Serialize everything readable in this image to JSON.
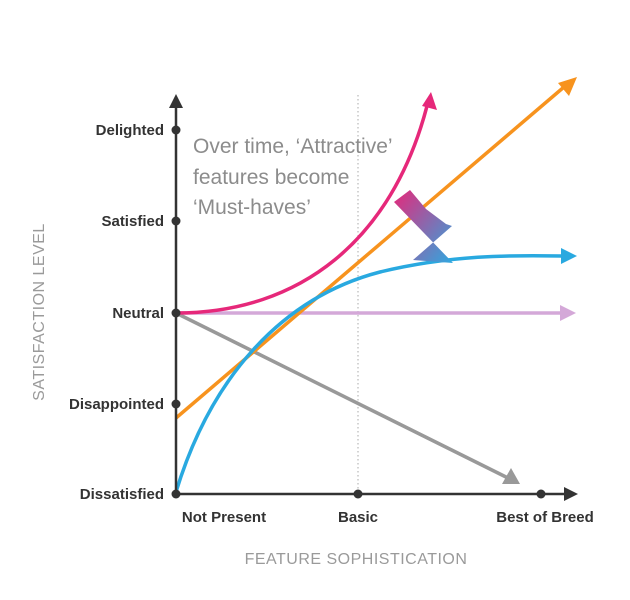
{
  "diagram": {
    "y_axis_title": "SATISFACTION LEVEL",
    "x_axis_title": "FEATURE SOPHISTICATION",
    "y_levels": [
      "Delighted",
      "Satisfied",
      "Neutral",
      "Disappointed",
      "Dissatisfied"
    ],
    "x_levels": [
      "Not Present",
      "Basic",
      "Best of Breed"
    ],
    "annotation": {
      "line1": "Over time, ‘Attractive’",
      "line2": "features become",
      "line3": "‘Must-haves’"
    },
    "colors": {
      "axis": "#333333",
      "attractive_curve": "#e6287a",
      "performance_line": "#f7931e",
      "must_have_curve": "#29a9e0",
      "indifferent_line": "#d4a8d8",
      "reverse_line": "#999999",
      "arrow_gradient_start": "#e6287a",
      "arrow_gradient_end": "#2ea8e0",
      "basic_divider": "#aaaaaa"
    }
  }
}
